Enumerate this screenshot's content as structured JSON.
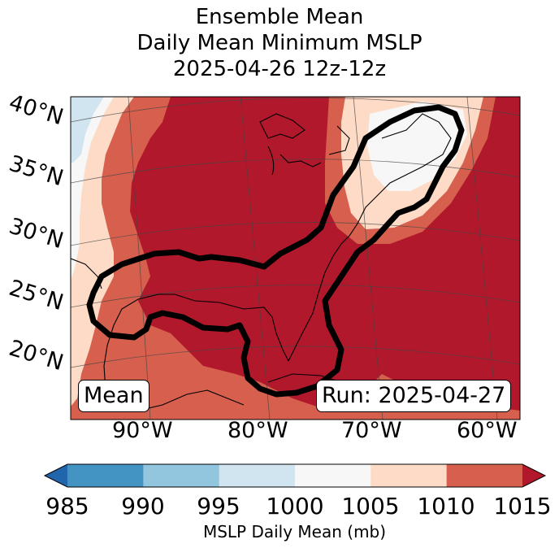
{
  "title": {
    "line1": "Ensemble Mean",
    "line2": "Daily Mean Minimum MSLP",
    "line3": "2025-04-26 12z-12z"
  },
  "map": {
    "lat_labels": [
      "40°N",
      "35°N",
      "30°N",
      "25°N",
      "20°N"
    ],
    "lon_labels": [
      "90°W",
      "80°W",
      "70°W",
      "60°W"
    ],
    "left_box": "Mean",
    "right_box": "Run: 2025-04-27"
  },
  "colorbar": {
    "ticks": [
      "985",
      "990",
      "995",
      "1000",
      "1005",
      "1010",
      "1015"
    ],
    "label": "MSLP Daily Mean (mb)",
    "colors": [
      "#2166ac",
      "#4393c3",
      "#92c5de",
      "#d1e5f0",
      "#f7f7f7",
      "#fddbc7",
      "#d6604d",
      "#b2182b"
    ]
  }
}
